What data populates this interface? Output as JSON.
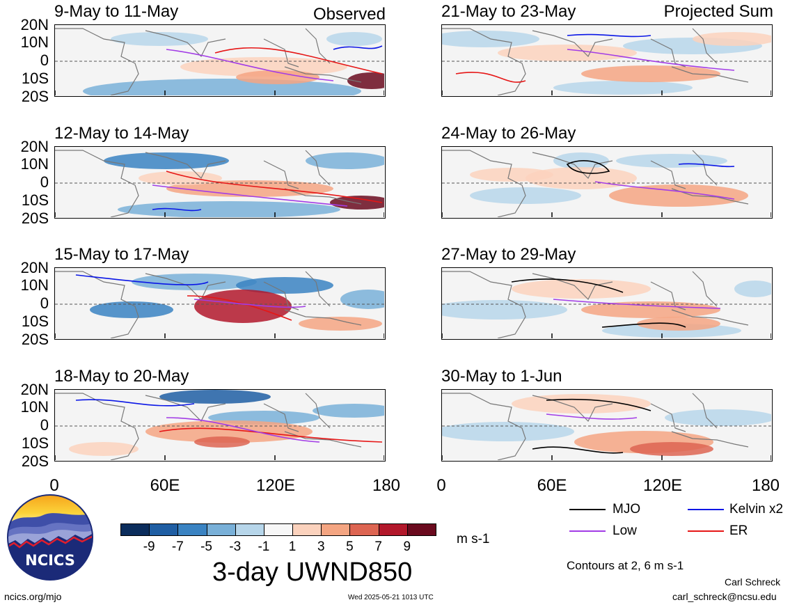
{
  "headers": {
    "left": "Observed",
    "right": "Projected Sum"
  },
  "left_panels": [
    {
      "title": "9-May to 11-May"
    },
    {
      "title": "12-May to 14-May"
    },
    {
      "title": "15-May to 17-May"
    },
    {
      "title": "18-May to 20-May"
    }
  ],
  "right_panels": [
    {
      "title": "21-May to 23-May"
    },
    {
      "title": "24-May to 26-May"
    },
    {
      "title": "27-May to 29-May"
    },
    {
      "title": "30-May to 1-Jun"
    }
  ],
  "lat_labels": [
    "20N",
    "10N",
    "0",
    "10S",
    "20S"
  ],
  "lon_labels": [
    "0",
    "60E",
    "120E",
    "180"
  ],
  "colorbar": {
    "ticks": [
      "-9",
      "-7",
      "-5",
      "-3",
      "-1",
      "1",
      "3",
      "5",
      "7",
      "9"
    ],
    "colors": [
      "#0b2d5c",
      "#1f5ea3",
      "#3a83c2",
      "#79b0d8",
      "#b7d6ea",
      "#f7f7f7",
      "#fbd2bd",
      "#f4a582",
      "#dd6552",
      "#b2182b",
      "#6a0a1e"
    ],
    "unit": "m s-1"
  },
  "title": "3-day UWND850",
  "legend": {
    "items": [
      {
        "label": "MJO",
        "color": "#000000"
      },
      {
        "label": "Kelvin x2",
        "color": "#0a16e6"
      },
      {
        "label": "Low",
        "color": "#a23ce6"
      },
      {
        "label": "ER",
        "color": "#e61616"
      }
    ],
    "note": "Contours at 2, 6 m s-1"
  },
  "logo": {
    "text": "NCICS"
  },
  "footer": {
    "url": "ncics.org/mjo",
    "timestamp": "Wed 2025-05-21 1013 UTC",
    "author": "Carl Schreck",
    "email": "carl_schreck@ncsu.edu"
  }
}
